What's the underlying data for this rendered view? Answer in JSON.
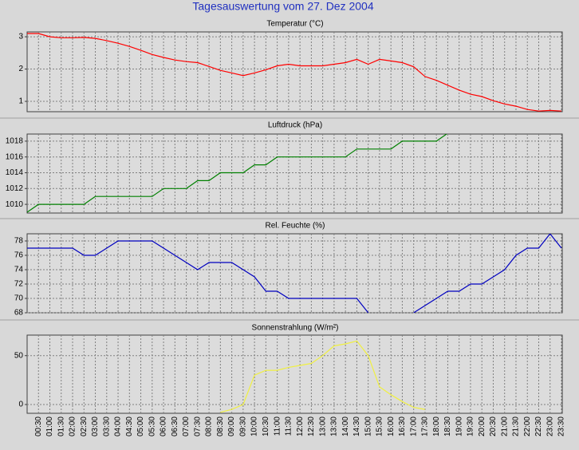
{
  "title": "Tagesauswertung vom 27. Dez 2004",
  "chart_data": [
    {
      "type": "line",
      "title": "Temperatur (°C)",
      "color": "#ff0000",
      "grid": true,
      "ylim": [
        0.68,
        3.15
      ],
      "yticks": [
        1,
        2,
        3
      ],
      "values": [
        3.1,
        3.1,
        3.0,
        2.97,
        2.97,
        2.98,
        2.95,
        2.88,
        2.8,
        2.7,
        2.58,
        2.45,
        2.36,
        2.28,
        2.23,
        2.2,
        2.08,
        1.96,
        1.88,
        1.8,
        1.88,
        1.98,
        2.1,
        2.15,
        2.1,
        2.1,
        2.1,
        2.15,
        2.2,
        2.3,
        2.15,
        2.3,
        2.25,
        2.2,
        2.07,
        1.77,
        1.65,
        1.5,
        1.35,
        1.22,
        1.15,
        1.02,
        0.92,
        0.85,
        0.75,
        0.7,
        0.72,
        0.7
      ]
    },
    {
      "type": "line",
      "title": "Luftdruck (hPa)",
      "color": "#008000",
      "grid": true,
      "ylim": [
        1008.9,
        1018.9
      ],
      "yticks": [
        1010,
        1012,
        1014,
        1016,
        1018
      ],
      "values": [
        1009,
        1010,
        1010,
        1010,
        1010,
        1010,
        1011,
        1011,
        1011,
        1011,
        1011,
        1011,
        1012,
        1012,
        1012,
        1013,
        1013,
        1014,
        1014,
        1014,
        1015,
        1015,
        1016,
        1016,
        1016,
        1016,
        1016,
        1016,
        1016,
        1017,
        1017,
        1017,
        1017,
        1018,
        1018,
        1018,
        1018,
        1019,
        null,
        null,
        null,
        null,
        null,
        null,
        null,
        null,
        null,
        null
      ]
    },
    {
      "type": "line",
      "title": "Rel. Feuchte (%)",
      "color": "#0000c0",
      "grid": true,
      "ylim": [
        68,
        79
      ],
      "yticks": [
        68,
        70,
        72,
        74,
        76,
        78
      ],
      "values": [
        77,
        77,
        77,
        77,
        77,
        76,
        76,
        77,
        78,
        78,
        78,
        78,
        77,
        76,
        75,
        74,
        75,
        75,
        75,
        74,
        73,
        71,
        71,
        70,
        70,
        70,
        70,
        70,
        70,
        70,
        68,
        null,
        null,
        null,
        68,
        69,
        70,
        71,
        71,
        72,
        72,
        73,
        74,
        76,
        77,
        77,
        79,
        77
      ]
    },
    {
      "type": "line",
      "title": "Sonnenstrahlung (W/m²)",
      "color": "#f0f040",
      "grid": true,
      "ylim": [
        -9,
        71
      ],
      "yticks": [
        0,
        50
      ],
      "categories": [
        null,
        "00:30",
        "01:00",
        "01:30",
        "02:00",
        "02:30",
        "03:00",
        "03:30",
        "04:00",
        "04:30",
        "05:00",
        "05:30",
        "06:00",
        "06:30",
        "07:00",
        "07:30",
        "08:00",
        "08:30",
        "09:00",
        "09:30",
        "10:00",
        "10:30",
        "11:00",
        "11:30",
        "12:00",
        "12:30",
        "13:00",
        "13:30",
        "14:00",
        "14:30",
        "15:00",
        "15:30",
        "16:00",
        "16:30",
        "17:00",
        "17:30",
        "18:00",
        "18:30",
        "19:00",
        "19:30",
        "20:00",
        "20:30",
        "21:00",
        "21:30",
        "22:00",
        "22:30",
        "23:00",
        "23:30"
      ],
      "values": [
        null,
        null,
        null,
        null,
        null,
        null,
        null,
        null,
        null,
        null,
        null,
        null,
        null,
        null,
        null,
        null,
        null,
        -8,
        -5,
        0,
        30,
        35,
        35,
        38,
        40,
        42,
        50,
        60,
        62,
        65,
        50,
        18,
        10,
        3,
        -3,
        -5,
        null,
        null,
        null,
        null,
        null,
        null,
        null,
        null,
        null,
        null,
        null,
        null
      ]
    }
  ]
}
